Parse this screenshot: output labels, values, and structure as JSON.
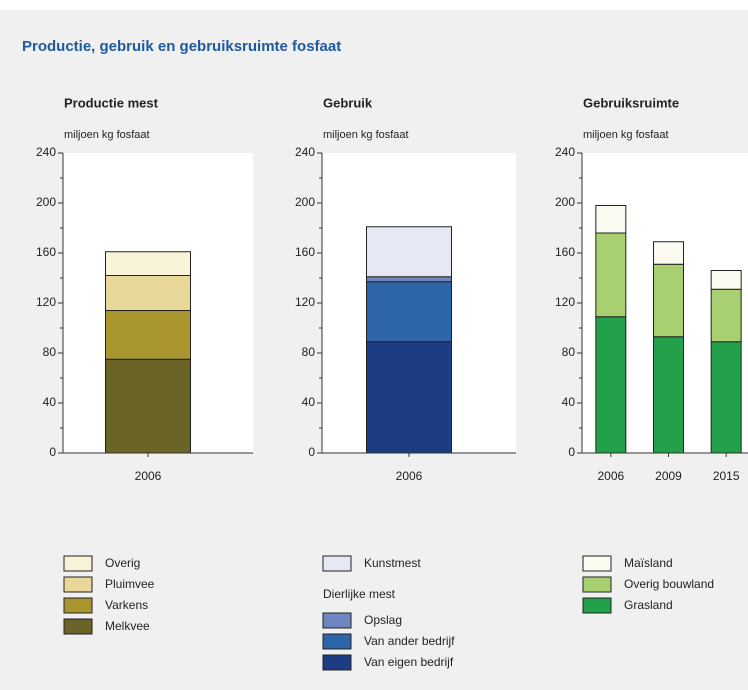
{
  "title": "Productie, gebruik en gebruiksruimte fosfaat",
  "chart_data": [
    {
      "type": "bar",
      "stacked": true,
      "title": "Productie mest",
      "y_label": "miljoen kg fosfaat",
      "categories": [
        "2006"
      ],
      "ylim": [
        0,
        240
      ],
      "yticks": [
        0,
        40,
        80,
        120,
        160,
        200,
        240
      ],
      "series": [
        {
          "name": "Melkvee",
          "color": "#6b6428",
          "values": [
            75
          ]
        },
        {
          "name": "Varkens",
          "color": "#a8952e",
          "values": [
            39
          ]
        },
        {
          "name": "Pluimvee",
          "color": "#e8d89a",
          "values": [
            28
          ]
        },
        {
          "name": "Overig",
          "color": "#f8f2d8",
          "values": [
            19
          ]
        }
      ]
    },
    {
      "type": "bar",
      "stacked": true,
      "title": "Gebruik",
      "y_label": "miljoen kg fosfaat",
      "categories": [
        "2006"
      ],
      "ylim": [
        0,
        240
      ],
      "yticks": [
        0,
        40,
        80,
        120,
        160,
        200,
        240
      ],
      "legend_note": "Dierlijke mest",
      "series": [
        {
          "name": "Van eigen bedrijf",
          "color": "#1c3d84",
          "values": [
            89
          ]
        },
        {
          "name": "Van ander bedrijf",
          "color": "#2e64a8",
          "values": [
            48
          ]
        },
        {
          "name": "Opslag",
          "color": "#6f86c0",
          "values": [
            4
          ]
        },
        {
          "name": "Kunstmest",
          "color": "#e6e8f4",
          "values": [
            40
          ]
        }
      ]
    },
    {
      "type": "bar",
      "stacked": true,
      "title": "Gebruiksruimte",
      "y_label": "miljoen kg fosfaat",
      "categories": [
        "2006",
        "2009",
        "2015"
      ],
      "ylim": [
        0,
        240
      ],
      "yticks": [
        0,
        40,
        80,
        120,
        160,
        200,
        240
      ],
      "series": [
        {
          "name": "Grasland",
          "color": "#22a04a",
          "values": [
            109,
            93,
            89
          ]
        },
        {
          "name": "Overig bouwland",
          "color": "#a8d070",
          "values": [
            67,
            58,
            42
          ]
        },
        {
          "name": "Maïsland",
          "color": "#fafaf0",
          "values": [
            22,
            18,
            15
          ]
        }
      ]
    }
  ]
}
